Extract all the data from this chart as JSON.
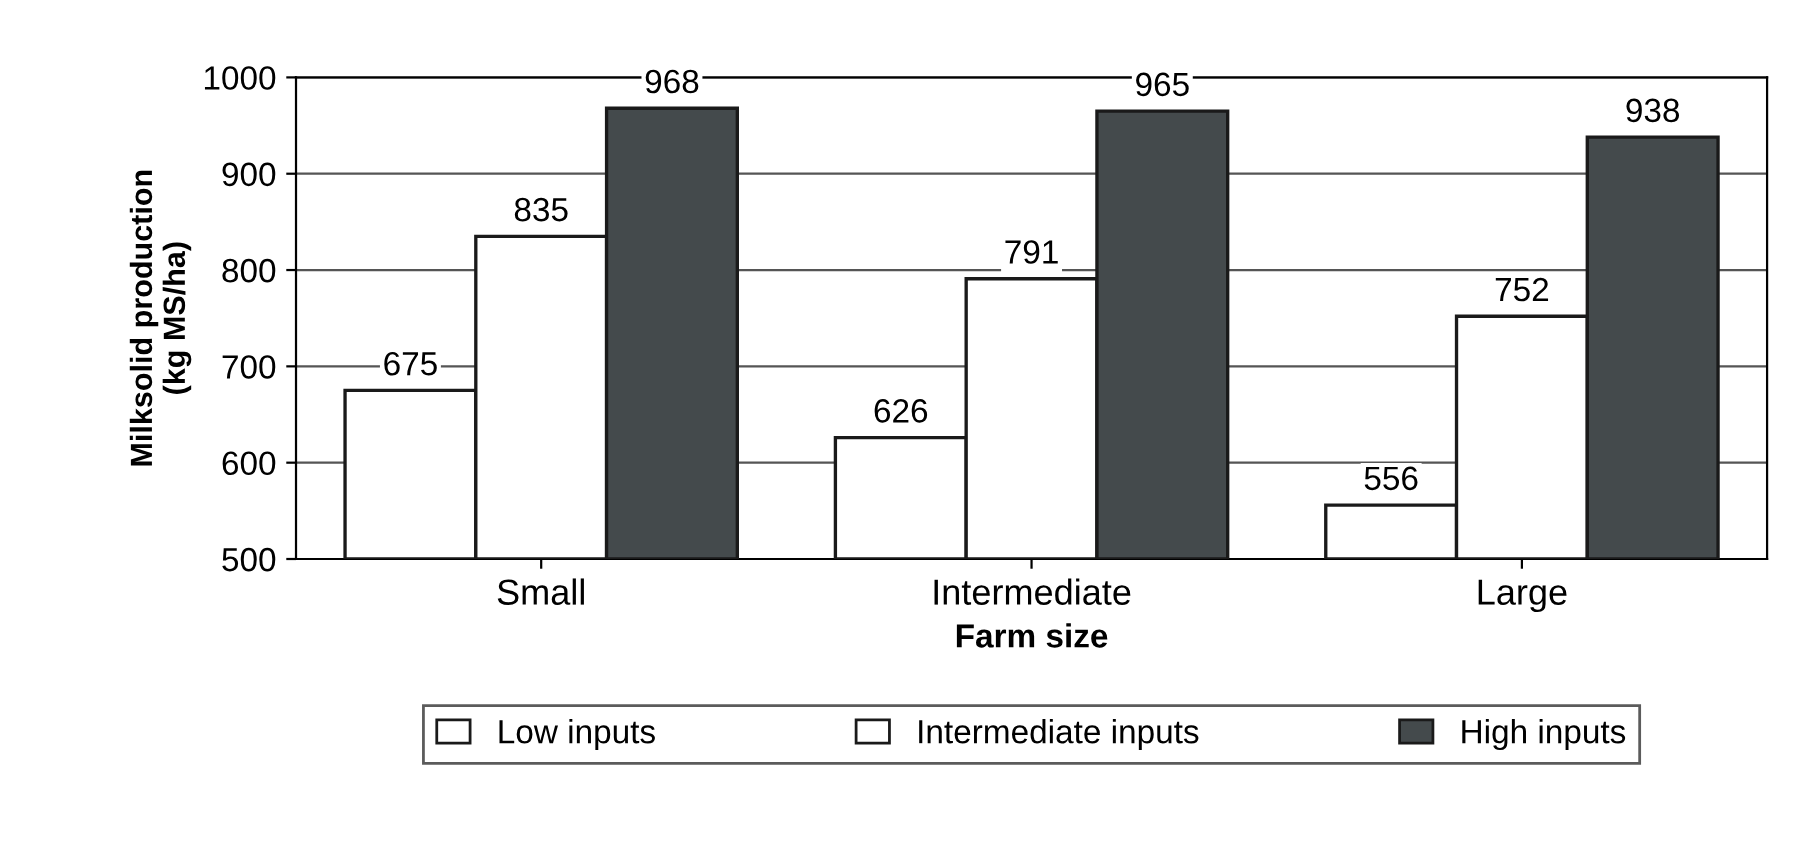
{
  "chart_data": {
    "type": "bar",
    "xlabel": "Farm size",
    "ylabel": "Milksolid production\n(kg MS/ha)",
    "categories": [
      "Small",
      "Intermediate",
      "Large"
    ],
    "series": [
      {
        "name": "Low inputs",
        "color": "#ffffff",
        "values": [
          675,
          626,
          556
        ]
      },
      {
        "name": "Intermediate inputs",
        "color": "#ffffff",
        "values": [
          835,
          791,
          752
        ]
      },
      {
        "name": "High inputs",
        "color": "#444a4c",
        "values": [
          968,
          965,
          938
        ]
      }
    ],
    "ylim": [
      500,
      1000
    ],
    "yticks": [
      500,
      600,
      700,
      800,
      900,
      1000
    ],
    "grid": "y",
    "legend": "bottom",
    "data_labels": true
  }
}
